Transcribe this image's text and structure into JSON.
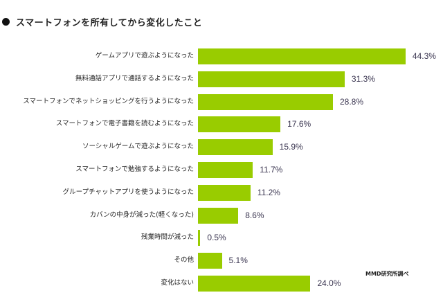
{
  "title": "スマートフォンを所有してから変化したこと",
  "source": "MMD研究所調べ",
  "colors": {
    "bar": "#99cc00",
    "value_text": "#3a3550"
  },
  "chart_data": {
    "type": "bar",
    "orientation": "horizontal",
    "title": "スマートフォンを所有してから変化したこと",
    "xlabel": "",
    "ylabel": "",
    "grid": false,
    "legend": null,
    "unit": "%",
    "categories": [
      "ゲームアプリで遊ぶようになった",
      "無料通話アプリで通話するようになった",
      "スマートフォンでネットショッピングを行うようになった",
      "スマートフォンで電子書籍を読むようになった",
      "ソーシャルゲームで遊ぶようになった",
      "スマートフォンで勉強するようになった",
      "グループチャットアプリを使うようになった",
      "カバンの中身が減った(軽くなった)",
      "残業時間が減った",
      "その他",
      "変化はない"
    ],
    "values": [
      44.3,
      31.3,
      28.8,
      17.6,
      15.9,
      11.7,
      11.2,
      8.6,
      0.5,
      5.1,
      24.0
    ],
    "value_labels": [
      "44.3%",
      "31.3%",
      "28.8%",
      "17.6%",
      "15.9%",
      "11.7%",
      "11.2%",
      "8.6%",
      "0.5%",
      "5.1%",
      "24.0%"
    ],
    "annotations": [
      "MMD研究所調べ"
    ]
  }
}
